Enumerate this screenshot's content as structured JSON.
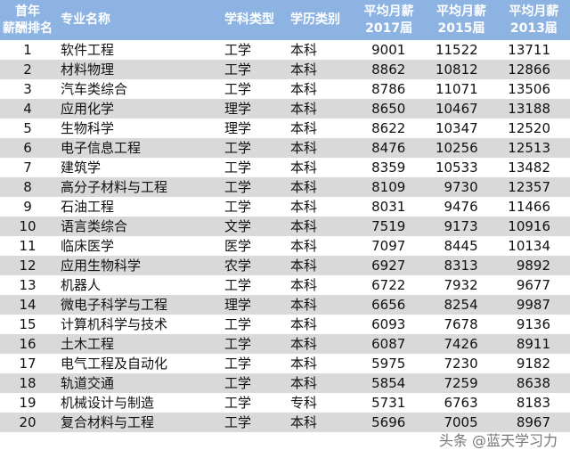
{
  "headers": [
    "首年\n薪酬排名",
    "专业名称",
    "学科类型",
    "学历类别",
    "平均月薪\n2017届",
    "平均月薪\n2015届",
    "平均月薪\n2013届"
  ],
  "rows": [
    [
      "1",
      "软件工程",
      "工学",
      "本科",
      "9001",
      "11522",
      "13711"
    ],
    [
      "2",
      "材料物理",
      "工学",
      "本科",
      "8862",
      "10812",
      "12866"
    ],
    [
      "3",
      "汽车类综合",
      "工学",
      "本科",
      "8786",
      "11071",
      "13506"
    ],
    [
      "4",
      "应用化学",
      "理学",
      "本科",
      "8650",
      "10467",
      "13188"
    ],
    [
      "5",
      "生物科学",
      "理学",
      "本科",
      "8622",
      "10347",
      "12520"
    ],
    [
      "6",
      "电子信息工程",
      "工学",
      "本科",
      "8476",
      "10256",
      "12513"
    ],
    [
      "7",
      "建筑学",
      "工学",
      "本科",
      "8359",
      "10533",
      "13482"
    ],
    [
      "8",
      "高分子材料与工程",
      "工学",
      "本科",
      "8109",
      "9730",
      "12357"
    ],
    [
      "9",
      "石油工程",
      "工学",
      "本科",
      "8031",
      "9476",
      "11466"
    ],
    [
      "10",
      "语言类综合",
      "文学",
      "本科",
      "7519",
      "9173",
      "10916"
    ],
    [
      "11",
      "临床医学",
      "医学",
      "本科",
      "7097",
      "8445",
      "10134"
    ],
    [
      "12",
      "应用生物科学",
      "农学",
      "本科",
      "6927",
      "8313",
      "9892"
    ],
    [
      "13",
      "机器人",
      "工学",
      "本科",
      "6722",
      "7932",
      "9677"
    ],
    [
      "14",
      "微电子科学与工程",
      "理学",
      "本科",
      "6656",
      "8254",
      "9987"
    ],
    [
      "15",
      "计算机科学与技术",
      "工学",
      "本科",
      "6093",
      "7678",
      "9136"
    ],
    [
      "16",
      "土木工程",
      "工学",
      "本科",
      "6087",
      "7426",
      "8911"
    ],
    [
      "17",
      "电气工程及自动化",
      "工学",
      "本科",
      "5975",
      "7230",
      "9182"
    ],
    [
      "18",
      "轨道交通",
      "工学",
      "本科",
      "5854",
      "7259",
      "8638"
    ],
    [
      "19",
      "机械设计与制造",
      "工学",
      "专科",
      "5731",
      "6763",
      "8183"
    ],
    [
      "20",
      "复合材料与工程",
      "工学",
      "本科",
      "5696",
      "7005",
      "8967"
    ]
  ],
  "watermark": "头条 @蓝天学习力",
  "colors": {
    "header": "#8db3e2",
    "stripe": "#d9d9d9"
  }
}
